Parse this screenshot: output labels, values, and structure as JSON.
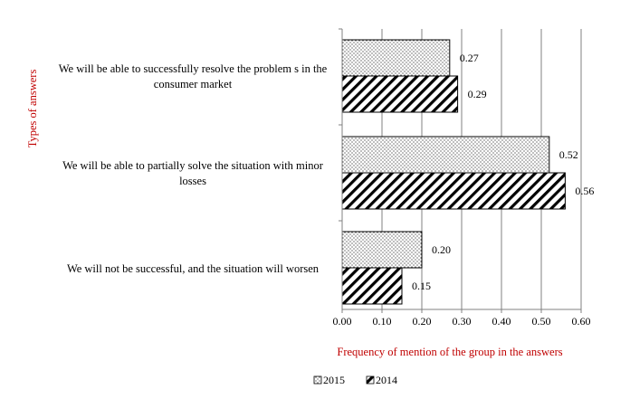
{
  "chart_data": {
    "type": "bar",
    "orientation": "horizontal",
    "categories": [
      [
        "We will be able to successfully resolve the problem s in the",
        "consumer market"
      ],
      [
        "We will be able to partially solve the situation with minor",
        "losses"
      ],
      [
        "We will not be successful, and the situation will worsen"
      ]
    ],
    "series": [
      {
        "name": "2015",
        "values": [
          0.27,
          0.52,
          0.2
        ],
        "labels": [
          "0.27",
          "0.52",
          "0.20"
        ],
        "pattern": "dots"
      },
      {
        "name": "2014",
        "values": [
          0.29,
          0.56,
          0.15
        ],
        "labels": [
          "0.29",
          "0.56",
          "0.15"
        ],
        "pattern": "hatch"
      }
    ],
    "xlabel": "Frequency of mention of the group in the answers",
    "ylabel": "Types of answers",
    "xlim": [
      0,
      0.6
    ],
    "xticks": [
      "0.00",
      "0.10",
      "0.20",
      "0.30",
      "0.40",
      "0.50",
      "0.60"
    ],
    "grid": "vertical",
    "legend_position": "bottom",
    "colors": {
      "axis_title": "#c00000",
      "grid": "#808080",
      "bar_edge": "#000000"
    }
  }
}
